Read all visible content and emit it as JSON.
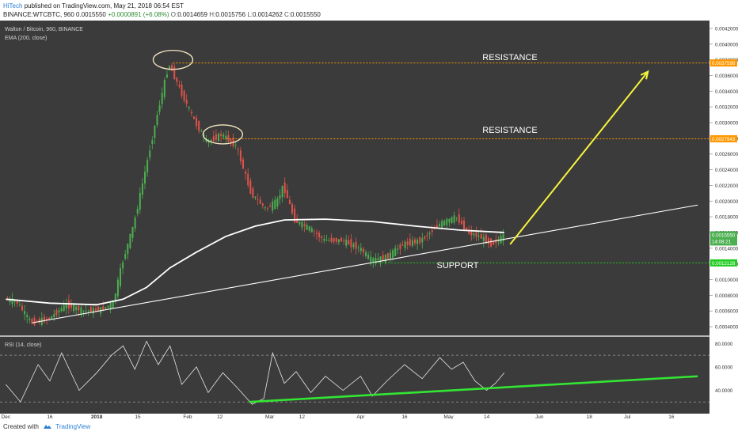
{
  "header": {
    "author": "HiTech",
    "published": "published on TradingView.com, May 21, 2018 06:54 EST",
    "symbol_line": "BINANCE:WTCBTC, 960",
    "last": "0.0015550",
    "change": "+0.0000891 (+6.08%)",
    "ohlc": {
      "o": "0.0014659",
      "h": "0.0015756",
      "l": "0.0014262",
      "c": "0.0015550"
    }
  },
  "footer": {
    "created_with": "Created with",
    "brand": "TradingView"
  },
  "colors": {
    "background": "#3b3b3b",
    "up": "#4caf50",
    "down": "#e0534a",
    "ema": "#ffffff",
    "resistance": "#ff9800",
    "support": "#22cc22",
    "arrow": "#f5f53c",
    "rsi_trend": "#33e633"
  },
  "chart_data": [
    {
      "type": "candlestick",
      "title": "Walton / Bitcoin, 960, BINANCE",
      "indicator_label": "EMA (200, close)",
      "x_ticks": [
        "Dec",
        "16",
        "2018",
        "15",
        "Feb",
        "12",
        "Mar",
        "12",
        "Apr",
        "16",
        "May",
        "14",
        "Jun",
        "18",
        "Jul",
        "16"
      ],
      "y_ticks": [
        "0.0042000",
        "0.0040000",
        "0.0038000",
        "0.0036000",
        "0.0034000",
        "0.0032000",
        "0.0030000",
        "0.0028000",
        "0.0026000",
        "0.0024000",
        "0.0022000",
        "0.0020000",
        "0.0018000",
        "0.0016000",
        "0.0014000",
        "0.0012000",
        "0.0010000",
        "0.0008000",
        "0.0006000",
        "0.0004000"
      ],
      "ylim": [
        0.0003,
        0.0043
      ],
      "price_path": [
        [
          "2017-12-01",
          0.00075
        ],
        [
          "2017-12-05",
          0.00072
        ],
        [
          "2017-12-10",
          0.00045
        ],
        [
          "2017-12-16",
          0.0005
        ],
        [
          "2017-12-22",
          0.00068
        ],
        [
          "2017-12-28",
          0.0006
        ],
        [
          "2018-01-03",
          0.00062
        ],
        [
          "2018-01-07",
          0.0007
        ],
        [
          "2018-01-10",
          0.0012
        ],
        [
          "2018-01-14",
          0.0017
        ],
        [
          "2018-01-18",
          0.0024
        ],
        [
          "2018-01-22",
          0.0031
        ],
        [
          "2018-01-26",
          0.00375
        ],
        [
          "2018-01-30",
          0.0034
        ],
        [
          "2018-02-04",
          0.003
        ],
        [
          "2018-02-08",
          0.00275
        ],
        [
          "2018-02-13",
          0.00285
        ],
        [
          "2018-02-18",
          0.0027
        ],
        [
          "2018-02-23",
          0.0021
        ],
        [
          "2018-02-28",
          0.0019
        ],
        [
          "2018-03-04",
          0.002
        ],
        [
          "2018-03-06",
          0.0022
        ],
        [
          "2018-03-10",
          0.00175
        ],
        [
          "2018-03-15",
          0.00165
        ],
        [
          "2018-03-20",
          0.0015
        ],
        [
          "2018-03-26",
          0.0015
        ],
        [
          "2018-04-01",
          0.0014
        ],
        [
          "2018-04-05",
          0.00125
        ],
        [
          "2018-04-10",
          0.00128
        ],
        [
          "2018-04-16",
          0.00145
        ],
        [
          "2018-04-22",
          0.0015
        ],
        [
          "2018-04-28",
          0.0017
        ],
        [
          "2018-05-04",
          0.0018
        ],
        [
          "2018-05-08",
          0.0016
        ],
        [
          "2018-05-12",
          0.00155
        ],
        [
          "2018-05-16",
          0.00145
        ],
        [
          "2018-05-20",
          0.00155
        ]
      ],
      "ema200": [
        [
          "2017-12-01",
          0.00075
        ],
        [
          "2017-12-16",
          0.0007
        ],
        [
          "2018-01-01",
          0.00068
        ],
        [
          "2018-01-10",
          0.00075
        ],
        [
          "2018-01-18",
          0.0009
        ],
        [
          "2018-01-26",
          0.00115
        ],
        [
          "2018-02-04",
          0.00135
        ],
        [
          "2018-02-14",
          0.00155
        ],
        [
          "2018-02-24",
          0.00168
        ],
        [
          "2018-03-06",
          0.00176
        ],
        [
          "2018-03-20",
          0.00177
        ],
        [
          "2018-04-05",
          0.00174
        ],
        [
          "2018-04-20",
          0.00168
        ],
        [
          "2018-05-05",
          0.00163
        ],
        [
          "2018-05-20",
          0.0016
        ]
      ],
      "trendline_support": {
        "from": [
          "2017-12-10",
          0.00045
        ],
        "to": [
          "2018-07-25",
          0.00195
        ]
      },
      "levels": [
        {
          "label": "RESISTANCE",
          "value": 0.0037598,
          "value_label": "0.0037598"
        },
        {
          "label": "RESISTANCE",
          "value": 0.0027943,
          "value_label": "0.0027943"
        },
        {
          "label": "SUPPORT",
          "value": 0.0012128,
          "value_label": "0.0012128"
        }
      ],
      "current_price_labels": [
        "0.0015550",
        "14:08:21"
      ],
      "highlight_ellipses": [
        {
          "center": [
            "2018-01-27",
            0.0038
          ]
        },
        {
          "center": [
            "2018-02-13",
            0.00285
          ]
        }
      ],
      "projection_arrow": {
        "from": [
          "2018-05-22",
          0.00145
        ],
        "to": [
          "2018-07-08",
          0.00365
        ]
      }
    },
    {
      "type": "line",
      "title": "RSI (14, close)",
      "y_ticks": [
        "80.0000",
        "60.0000",
        "40.0000"
      ],
      "ylim": [
        20,
        85
      ],
      "bands": [
        70,
        30
      ],
      "rsi_path": [
        [
          "2017-12-01",
          45
        ],
        [
          "2017-12-06",
          30
        ],
        [
          "2017-12-12",
          62
        ],
        [
          "2017-12-16",
          48
        ],
        [
          "2017-12-20",
          72
        ],
        [
          "2017-12-26",
          40
        ],
        [
          "2018-01-01",
          55
        ],
        [
          "2018-01-06",
          70
        ],
        [
          "2018-01-10",
          78
        ],
        [
          "2018-01-14",
          58
        ],
        [
          "2018-01-18",
          82
        ],
        [
          "2018-01-22",
          62
        ],
        [
          "2018-01-26",
          78
        ],
        [
          "2018-01-30",
          45
        ],
        [
          "2018-02-04",
          60
        ],
        [
          "2018-02-08",
          38
        ],
        [
          "2018-02-13",
          55
        ],
        [
          "2018-02-18",
          42
        ],
        [
          "2018-02-23",
          28
        ],
        [
          "2018-02-27",
          33
        ],
        [
          "2018-03-02",
          72
        ],
        [
          "2018-03-06",
          46
        ],
        [
          "2018-03-10",
          56
        ],
        [
          "2018-03-15",
          38
        ],
        [
          "2018-03-20",
          52
        ],
        [
          "2018-03-26",
          40
        ],
        [
          "2018-04-01",
          52
        ],
        [
          "2018-04-05",
          35
        ],
        [
          "2018-04-10",
          48
        ],
        [
          "2018-04-16",
          62
        ],
        [
          "2018-04-22",
          50
        ],
        [
          "2018-04-28",
          68
        ],
        [
          "2018-05-02",
          58
        ],
        [
          "2018-05-06",
          64
        ],
        [
          "2018-05-10",
          48
        ],
        [
          "2018-05-14",
          40
        ],
        [
          "2018-05-17",
          46
        ],
        [
          "2018-05-20",
          55
        ]
      ],
      "rsi_trendline": {
        "from": [
          "2018-02-22",
          30
        ],
        "to": [
          "2018-07-25",
          52
        ]
      }
    }
  ]
}
